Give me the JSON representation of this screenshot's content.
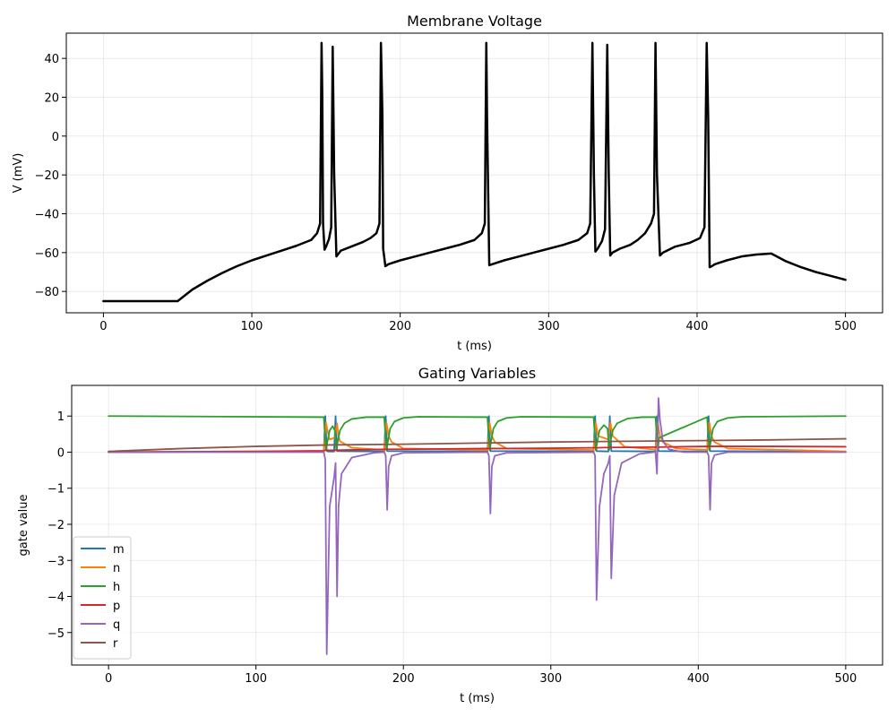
{
  "chart_data": [
    {
      "type": "line",
      "title": "Membrane Voltage",
      "xlabel": "t (ms)",
      "ylabel": "V (mV)",
      "xlim": [
        -25,
        525
      ],
      "ylim": [
        -91,
        53
      ],
      "xticks": [
        0,
        100,
        200,
        300,
        400,
        500
      ],
      "yticks": [
        -80,
        -60,
        -40,
        -20,
        0,
        20,
        40
      ],
      "grid": true,
      "legend": "none",
      "series": [
        {
          "color": "#000000",
          "x": [
            0,
            50,
            55,
            60,
            70,
            80,
            90,
            100,
            110,
            120,
            130,
            140,
            144,
            146,
            147,
            147.5,
            148,
            149,
            150,
            152,
            153.5,
            154.5,
            155.5,
            157,
            160,
            165,
            170,
            175,
            180,
            184,
            186,
            187,
            188,
            188.5,
            190,
            192,
            200,
            210,
            220,
            230,
            240,
            250,
            255,
            257,
            258,
            258.5,
            260,
            262,
            270,
            280,
            290,
            300,
            310,
            320,
            326,
            328,
            329.5,
            330.5,
            331.5,
            333,
            336,
            338,
            339.5,
            340.5,
            341.5,
            343,
            348,
            355,
            360,
            365,
            369,
            371,
            372,
            373,
            375,
            377,
            385,
            395,
            402,
            405,
            406.5,
            407.5,
            408.5,
            410,
            412,
            420,
            430,
            440,
            450,
            460,
            470,
            480,
            490,
            500
          ],
          "y": [
            -85,
            -85,
            -82,
            -79,
            -74.5,
            -70.5,
            -67,
            -64,
            -61.5,
            -59,
            -56.5,
            -53.5,
            -50,
            -45,
            48,
            20,
            -45,
            -58.5,
            -57,
            -53,
            -47,
            46,
            -20,
            -62,
            -59,
            -57.5,
            -56,
            -54.5,
            -52.5,
            -50,
            -45,
            48,
            10,
            -58,
            -67,
            -66,
            -64,
            -62,
            -60,
            -58,
            -56,
            -53.5,
            -50,
            -45,
            48,
            10,
            -66.5,
            -66,
            -64,
            -62,
            -60,
            -58,
            -56,
            -53.5,
            -50,
            -45,
            48,
            -20,
            -59.5,
            -58,
            -54,
            -48,
            47,
            -20,
            -61.5,
            -60,
            -58,
            -56,
            -53.5,
            -50,
            -45,
            -40,
            48,
            -20,
            -61.5,
            -60,
            -57,
            -55,
            -52.5,
            -47,
            48,
            10,
            -67.5,
            -67,
            -66,
            -64,
            -62,
            -61,
            -60.5,
            -64.5,
            -67.5,
            -70,
            -72,
            -74
          ]
        }
      ]
    },
    {
      "type": "line",
      "title": "Gating Variables",
      "xlabel": "t (ms)",
      "ylabel": "gate value",
      "xlim": [
        -25,
        525
      ],
      "ylim": [
        -5.9,
        1.85
      ],
      "xticks": [
        0,
        100,
        200,
        300,
        400,
        500
      ],
      "yticks": [
        -5,
        -4,
        -3,
        -2,
        -1,
        0,
        1
      ],
      "grid": true,
      "legend": "bottom-left",
      "series": [
        {
          "name": "m",
          "color": "#1f77b4",
          "x": [
            0,
            146,
            147,
            148,
            149,
            153,
            154,
            155,
            187,
            188,
            189,
            257,
            258,
            259,
            329,
            330,
            331,
            339,
            340,
            341,
            371,
            372,
            373,
            406,
            407,
            408,
            500
          ],
          "y": [
            0.0,
            0.02,
            1.0,
            0.03,
            0.02,
            0.02,
            1.0,
            0.03,
            0.02,
            1.0,
            0.03,
            0.02,
            1.0,
            0.03,
            0.02,
            1.0,
            0.03,
            0.02,
            1.0,
            0.03,
            0.02,
            1.0,
            0.03,
            0.02,
            1.0,
            0.03,
            0.01
          ]
        },
        {
          "name": "n",
          "color": "#ff7f0e",
          "x": [
            0,
            146,
            147.5,
            149,
            150,
            153.5,
            155,
            156,
            157,
            165,
            187,
            188.5,
            190,
            192,
            200,
            257,
            258.5,
            260,
            262,
            270,
            329,
            330.5,
            332,
            339,
            340.5,
            342,
            350,
            371,
            372.5,
            374,
            376,
            385,
            406,
            407.5,
            409,
            411,
            420,
            500
          ],
          "y": [
            0.0,
            0.03,
            0.82,
            0.5,
            0.35,
            0.4,
            0.8,
            0.45,
            0.3,
            0.12,
            0.06,
            0.82,
            0.45,
            0.28,
            0.1,
            0.06,
            0.82,
            0.45,
            0.28,
            0.1,
            0.06,
            0.82,
            0.45,
            0.35,
            0.82,
            0.45,
            0.15,
            0.07,
            0.82,
            0.45,
            0.28,
            0.1,
            0.06,
            0.82,
            0.45,
            0.28,
            0.1,
            0.02
          ]
        },
        {
          "name": "h",
          "color": "#2ca02c",
          "x": [
            0,
            146,
            147.5,
            148.5,
            150,
            152,
            153.5,
            154.5,
            155.5,
            157,
            160,
            165,
            175,
            187,
            188.5,
            189.5,
            191,
            194,
            200,
            210,
            257,
            258.5,
            259.5,
            261,
            264,
            270,
            280,
            329,
            330.5,
            331.5,
            333,
            336,
            338.5,
            339.5,
            340.5,
            342,
            345,
            352,
            362,
            371,
            372.5,
            373.5,
            406,
            407.5,
            408.5,
            410,
            413,
            420,
            430,
            500
          ],
          "y": [
            1.0,
            0.97,
            0.05,
            0.3,
            0.6,
            0.72,
            0.6,
            0.05,
            0.3,
            0.6,
            0.8,
            0.92,
            0.97,
            0.97,
            0.05,
            0.3,
            0.65,
            0.85,
            0.95,
            0.98,
            0.97,
            0.05,
            0.3,
            0.65,
            0.85,
            0.95,
            0.98,
            0.97,
            0.05,
            0.3,
            0.6,
            0.75,
            0.65,
            0.05,
            0.3,
            0.6,
            0.8,
            0.93,
            0.97,
            0.97,
            0.05,
            0.4,
            0.97,
            0.05,
            0.3,
            0.65,
            0.85,
            0.95,
            0.98,
            1.0
          ]
        },
        {
          "name": "p",
          "color": "#d62728",
          "x": [
            0,
            100,
            146,
            147.5,
            150,
            188,
            200,
            258,
            270,
            330,
            340,
            372,
            408,
            450,
            500
          ],
          "y": [
            0.0,
            0.02,
            0.04,
            0.06,
            0.05,
            0.08,
            0.08,
            0.1,
            0.1,
            0.12,
            0.13,
            0.14,
            0.16,
            0.16,
            0.15
          ]
        },
        {
          "name": "q",
          "color": "#9467bd",
          "x": [
            0,
            146,
            147,
            148,
            150,
            153,
            154,
            155,
            156,
            158,
            165,
            180,
            187,
            188,
            189,
            190,
            192,
            200,
            257,
            258,
            259,
            260,
            262,
            270,
            329,
            330,
            331,
            333,
            336,
            339,
            340,
            341,
            343,
            348,
            360,
            370,
            371,
            372,
            373,
            374,
            376,
            380,
            390,
            406,
            407,
            408,
            409,
            411,
            420,
            500
          ],
          "y": [
            0.0,
            0.0,
            -0.2,
            -5.6,
            -1.5,
            -0.7,
            -0.3,
            -4.0,
            -1.5,
            -0.6,
            -0.15,
            -0.02,
            0.0,
            -0.1,
            -1.6,
            -0.4,
            -0.1,
            -0.02,
            0.0,
            -0.1,
            -1.7,
            -0.4,
            -0.1,
            -0.02,
            0.0,
            -0.1,
            -4.1,
            -1.5,
            -0.6,
            -0.3,
            -0.1,
            -3.5,
            -1.2,
            -0.3,
            -0.05,
            0.0,
            0.0,
            -0.6,
            1.5,
            0.9,
            0.3,
            0.08,
            0.0,
            0.0,
            -0.1,
            -1.6,
            -0.3,
            -0.08,
            0.0,
            0.0
          ]
        },
        {
          "name": "r",
          "color": "#8c564b",
          "x": [
            0,
            50,
            100,
            150,
            200,
            250,
            300,
            350,
            400,
            450,
            500
          ],
          "y": [
            0.02,
            0.1,
            0.16,
            0.2,
            0.22,
            0.25,
            0.28,
            0.3,
            0.32,
            0.34,
            0.37
          ]
        }
      ]
    }
  ]
}
